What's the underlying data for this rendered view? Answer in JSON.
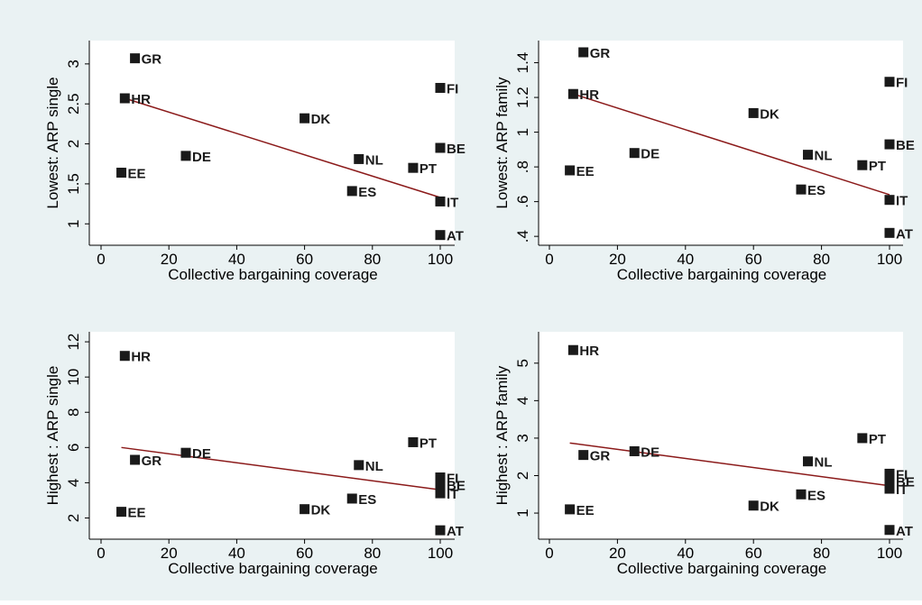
{
  "colors": {
    "background": "#eaf2f3",
    "plot_background": "#ffffff",
    "marker": "#1a1a1a",
    "fit_line": "#8b1a1a",
    "axis": "#000000"
  },
  "chart_data": [
    {
      "type": "scatter",
      "title": "",
      "xlabel": "Collective bargaining coverage",
      "ylabel": "Lowest: ARP single",
      "xlim": [
        0,
        100
      ],
      "ylim": [
        0.8,
        3.1
      ],
      "xticks": [
        0,
        20,
        40,
        60,
        80,
        100
      ],
      "xtick_labels": [
        "0",
        "20",
        "40",
        "60",
        "80",
        "100"
      ],
      "yticks": [
        1,
        1.5,
        2,
        2.5,
        3
      ],
      "ytick_labels": [
        "1",
        "1.5",
        "2",
        "2.5",
        "3"
      ],
      "grid": false,
      "points": [
        {
          "label": "GR",
          "x": 10,
          "y": 3.07
        },
        {
          "label": "HR",
          "x": 7,
          "y": 2.57
        },
        {
          "label": "FI",
          "x": 100,
          "y": 2.7
        },
        {
          "label": "DK",
          "x": 60,
          "y": 2.32
        },
        {
          "label": "BE",
          "x": 100,
          "y": 1.95
        },
        {
          "label": "DE",
          "x": 25,
          "y": 1.85
        },
        {
          "label": "NL",
          "x": 76,
          "y": 1.81
        },
        {
          "label": "PT",
          "x": 92,
          "y": 1.7
        },
        {
          "label": "EE",
          "x": 6,
          "y": 1.64
        },
        {
          "label": "ES",
          "x": 74,
          "y": 1.41
        },
        {
          "label": "IT",
          "x": 100,
          "y": 1.28
        },
        {
          "label": "AT",
          "x": 100,
          "y": 0.86
        }
      ],
      "fit_line": {
        "x": [
          7,
          100
        ],
        "y": [
          2.57,
          1.33
        ]
      }
    },
    {
      "type": "scatter",
      "title": "",
      "xlabel": "Collective bargaining coverage",
      "ylabel": "Lowest: ARP family",
      "xlim": [
        0,
        100
      ],
      "ylim": [
        0.38,
        1.46
      ],
      "xticks": [
        0,
        20,
        40,
        60,
        80,
        100
      ],
      "xtick_labels": [
        "0",
        "20",
        "40",
        "60",
        "80",
        "100"
      ],
      "yticks": [
        0.4,
        0.6,
        0.8,
        1,
        1.2,
        1.4
      ],
      "ytick_labels": [
        ".4",
        ".6",
        ".8",
        "1",
        "1.2",
        "1.4"
      ],
      "grid": false,
      "points": [
        {
          "label": "GR",
          "x": 10,
          "y": 1.46
        },
        {
          "label": "HR",
          "x": 7,
          "y": 1.22
        },
        {
          "label": "FI",
          "x": 100,
          "y": 1.29
        },
        {
          "label": "DK",
          "x": 60,
          "y": 1.11
        },
        {
          "label": "BE",
          "x": 100,
          "y": 0.93
        },
        {
          "label": "DE",
          "x": 25,
          "y": 0.88
        },
        {
          "label": "NL",
          "x": 76,
          "y": 0.87
        },
        {
          "label": "PT",
          "x": 92,
          "y": 0.81
        },
        {
          "label": "EE",
          "x": 6,
          "y": 0.78
        },
        {
          "label": "ES",
          "x": 74,
          "y": 0.67
        },
        {
          "label": "IT",
          "x": 100,
          "y": 0.61
        },
        {
          "label": "AT",
          "x": 100,
          "y": 0.42
        }
      ],
      "fit_line": {
        "x": [
          7,
          100
        ],
        "y": [
          1.22,
          0.64
        ]
      }
    },
    {
      "type": "scatter",
      "title": "",
      "xlabel": "Collective bargaining coverage",
      "ylabel": "Highest : ARP single",
      "xlim": [
        0,
        100
      ],
      "ylim": [
        1.0,
        11.8
      ],
      "xticks": [
        0,
        20,
        40,
        60,
        80,
        100
      ],
      "xtick_labels": [
        "0",
        "20",
        "40",
        "60",
        "80",
        "100"
      ],
      "yticks": [
        2,
        4,
        6,
        8,
        10,
        12
      ],
      "ytick_labels": [
        "2",
        "4",
        "6",
        "8",
        "10",
        "12"
      ],
      "grid": false,
      "points": [
        {
          "label": "HR",
          "x": 7,
          "y": 11.2
        },
        {
          "label": "PT",
          "x": 92,
          "y": 6.3
        },
        {
          "label": "DE",
          "x": 25,
          "y": 5.7
        },
        {
          "label": "GR",
          "x": 10,
          "y": 5.3
        },
        {
          "label": "NL",
          "x": 76,
          "y": 5.0
        },
        {
          "label": "FI",
          "x": 100,
          "y": 4.3
        },
        {
          "label": "BE",
          "x": 100,
          "y": 3.9
        },
        {
          "label": "IT",
          "x": 100,
          "y": 3.4
        },
        {
          "label": "ES",
          "x": 74,
          "y": 3.1
        },
        {
          "label": "DK",
          "x": 60,
          "y": 2.5
        },
        {
          "label": "EE",
          "x": 6,
          "y": 2.35
        },
        {
          "label": "AT",
          "x": 100,
          "y": 1.3
        }
      ],
      "fit_line": {
        "x": [
          6,
          100
        ],
        "y": [
          6.0,
          3.6
        ]
      }
    },
    {
      "type": "scatter",
      "title": "",
      "xlabel": "Collective bargaining coverage",
      "ylabel": "Highest : ARP family",
      "xlim": [
        0,
        100
      ],
      "ylim": [
        0.4,
        5.5
      ],
      "xticks": [
        0,
        20,
        40,
        60,
        80,
        100
      ],
      "xtick_labels": [
        "0",
        "20",
        "40",
        "60",
        "80",
        "100"
      ],
      "yticks": [
        1,
        2,
        3,
        4,
        5
      ],
      "ytick_labels": [
        "1",
        "2",
        "3",
        "4",
        "5"
      ],
      "grid": false,
      "points": [
        {
          "label": "HR",
          "x": 7,
          "y": 5.35
        },
        {
          "label": "PT",
          "x": 92,
          "y": 3.0
        },
        {
          "label": "DE",
          "x": 25,
          "y": 2.65
        },
        {
          "label": "GR",
          "x": 10,
          "y": 2.55
        },
        {
          "label": "NL",
          "x": 76,
          "y": 2.38
        },
        {
          "label": "FI",
          "x": 100,
          "y": 2.05
        },
        {
          "label": "BE",
          "x": 100,
          "y": 1.85
        },
        {
          "label": "IT",
          "x": 100,
          "y": 1.65
        },
        {
          "label": "ES",
          "x": 74,
          "y": 1.5
        },
        {
          "label": "DK",
          "x": 60,
          "y": 1.2
        },
        {
          "label": "EE",
          "x": 6,
          "y": 1.1
        },
        {
          "label": "AT",
          "x": 100,
          "y": 0.55
        }
      ],
      "fit_line": {
        "x": [
          6,
          100
        ],
        "y": [
          2.87,
          1.73
        ]
      }
    }
  ]
}
